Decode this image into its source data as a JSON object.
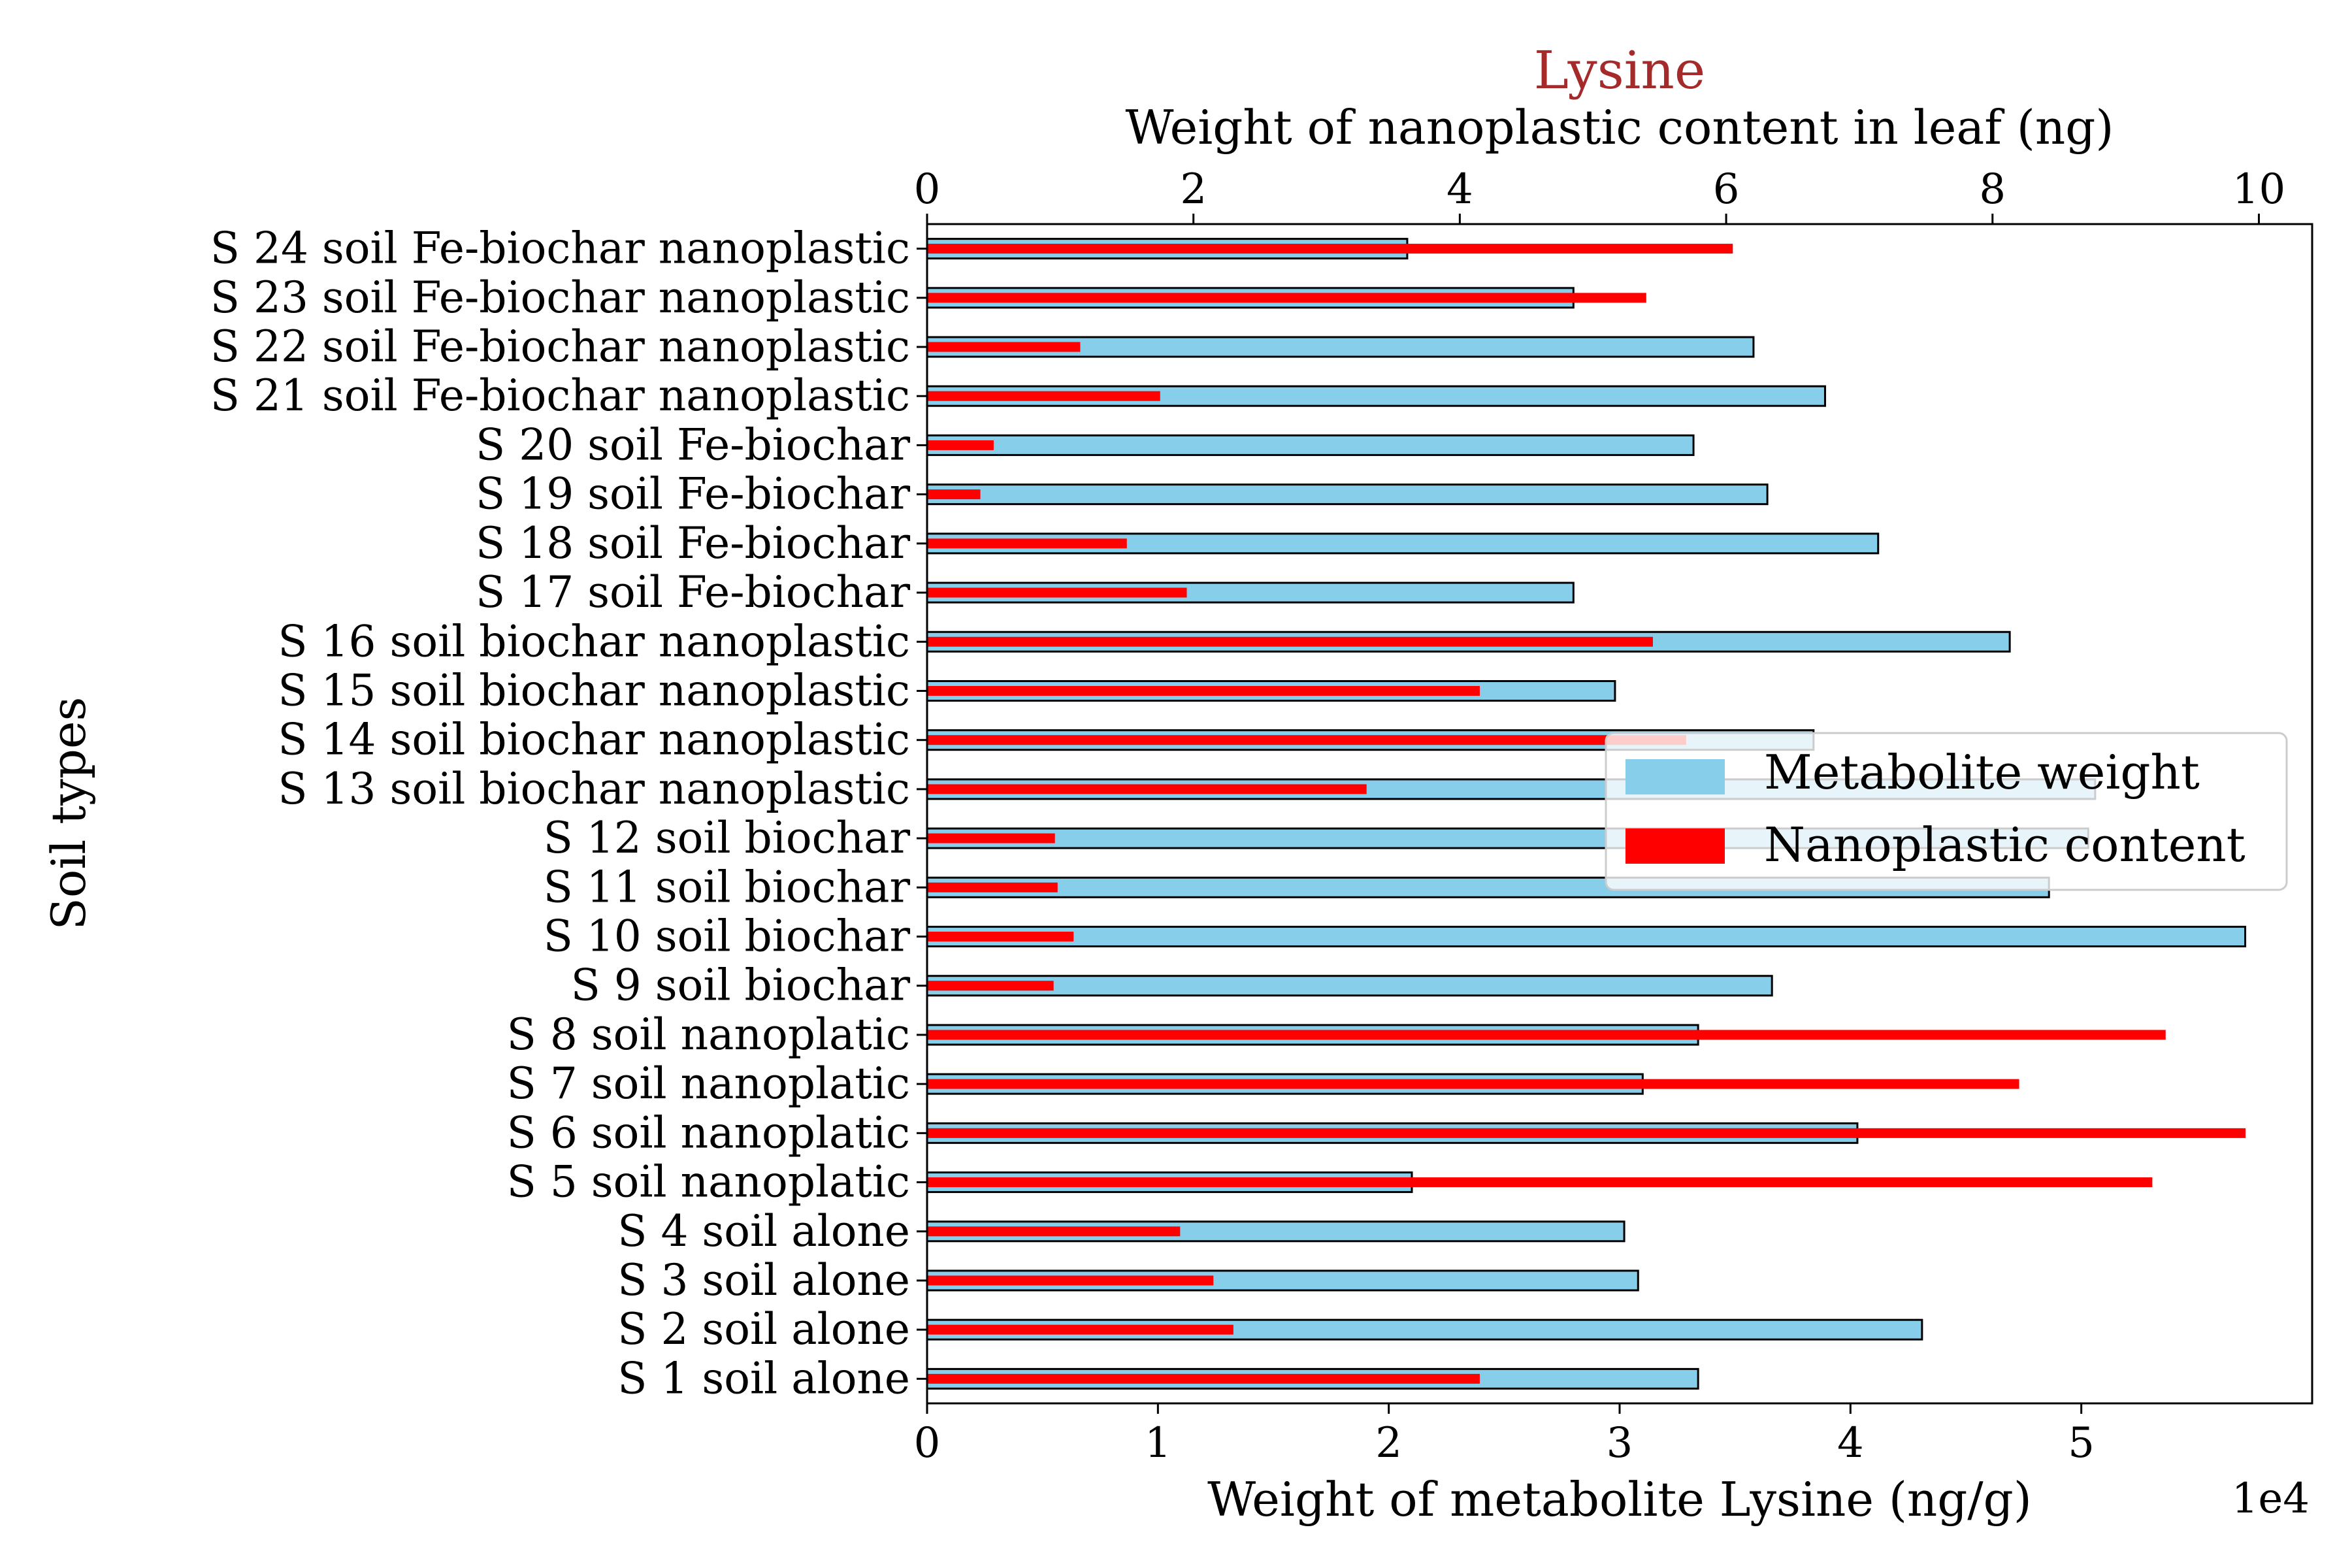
{
  "colors": {
    "metabolite": "#87CEEB",
    "nanoplastic": "#FF0000",
    "title": "#A52A2A",
    "edge": "#000000"
  },
  "chart_data": {
    "type": "bar",
    "orientation": "horizontal",
    "title": "Lysine",
    "xlabel": "Weight of metabolite Lysine (ng/g)",
    "x_offset_label": "1e4",
    "x2label": "Weight of nanoplastic content in leaf (ng)",
    "ylabel": "Soil types",
    "xlim": [
      0,
      60000
    ],
    "x2lim": [
      0,
      10.4
    ],
    "xticks": [
      0,
      10000,
      20000,
      30000,
      40000,
      50000
    ],
    "xtick_labels": [
      "0",
      "1",
      "2",
      "3",
      "4",
      "5"
    ],
    "x2ticks": [
      0,
      2,
      4,
      6,
      8,
      10
    ],
    "x2tick_labels": [
      "0",
      "2",
      "4",
      "6",
      "8",
      "10"
    ],
    "grid": false,
    "legend_position": "center-right",
    "categories": [
      "S 1 soil alone",
      "S 2 soil alone",
      "S 3 soil alone",
      "S 4 soil alone",
      "S 5 soil nanoplatic",
      "S 6 soil nanoplatic",
      "S 7 soil nanoplatic",
      "S 8 soil nanoplatic",
      "S 9 soil biochar",
      "S 10 soil biochar",
      "S 11 soil biochar",
      "S 12 soil biochar",
      "S 13 soil biochar nanoplastic",
      "S 14 soil biochar nanoplastic",
      "S 15 soil biochar nanoplastic",
      "S 16 soil biochar nanoplastic",
      "S 17 soil Fe-biochar",
      "S 18 soil Fe-biochar",
      "S 19 soil Fe-biochar",
      "S 20 soil Fe-biochar",
      "S 21 soil Fe-biochar nanoplastic",
      "S 22 soil Fe-biochar nanoplastic",
      "S 23 soil Fe-biochar nanoplastic",
      "S 24 soil Fe-biochar nanoplastic"
    ],
    "series": [
      {
        "name": "Metabolite weight",
        "axis": "bottom",
        "values": [
          33400,
          43100,
          30800,
          30200,
          21000,
          40300,
          31000,
          33400,
          36600,
          57100,
          48600,
          50300,
          50600,
          38400,
          29800,
          46900,
          28000,
          41200,
          36400,
          33200,
          38900,
          35800,
          28000,
          20800
        ]
      },
      {
        "name": "Nanoplastic content",
        "axis": "top",
        "values": [
          4.15,
          2.3,
          2.15,
          1.9,
          9.2,
          9.9,
          8.2,
          9.3,
          0.95,
          1.1,
          0.98,
          0.96,
          3.3,
          5.7,
          4.15,
          5.45,
          1.95,
          1.5,
          0.4,
          0.5,
          1.75,
          1.15,
          5.4,
          6.05
        ]
      }
    ]
  }
}
